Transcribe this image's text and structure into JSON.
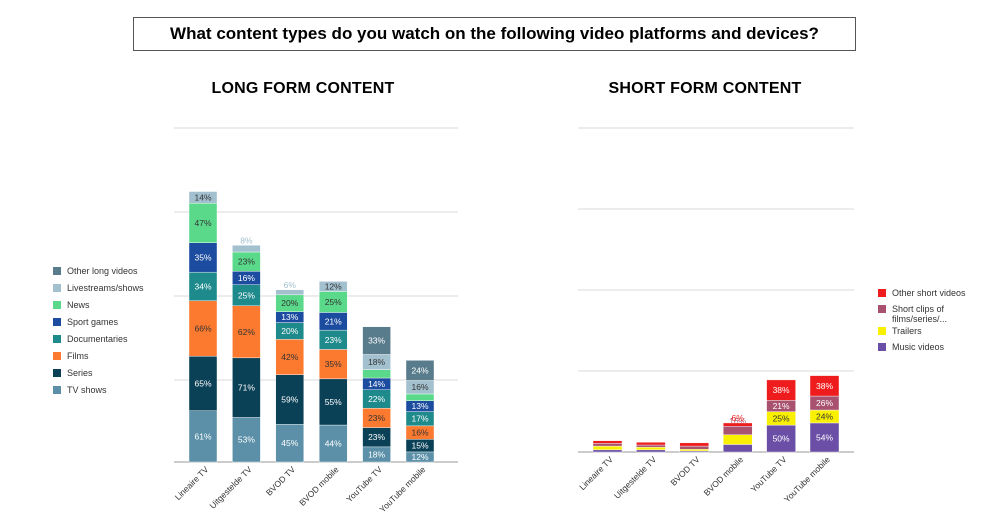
{
  "title": "What content types do you watch on the following video platforms and devices?",
  "chart_data": [
    {
      "type": "bar",
      "stacked": true,
      "title": "LONG FORM CONTENT",
      "categories": [
        "Lineaire TV",
        "Uitgestelde TV",
        "BVOD TV",
        "BVOD mobile",
        "YouTube TV",
        "YouTube mobile"
      ],
      "series": [
        {
          "name": "TV shows",
          "color": "#5b90a8",
          "values": [
            61,
            53,
            45,
            44,
            18,
            12
          ]
        },
        {
          "name": "Series",
          "color": "#0b4157",
          "values": [
            65,
            71,
            59,
            55,
            23,
            15
          ]
        },
        {
          "name": "Films",
          "color": "#fb7a30",
          "values": [
            66,
            62,
            42,
            35,
            23,
            16
          ]
        },
        {
          "name": "Documentaries",
          "color": "#1e8a8c",
          "values": [
            34,
            25,
            20,
            23,
            22,
            17
          ]
        },
        {
          "name": "Sport games",
          "color": "#1b4c9f",
          "values": [
            35,
            16,
            13,
            21,
            14,
            13
          ]
        },
        {
          "name": "News",
          "color": "#5ad98a",
          "values": [
            47,
            23,
            20,
            25,
            10,
            8
          ]
        },
        {
          "name": "Livestreams/shows",
          "color": "#a3c0cf",
          "values": [
            14,
            8,
            6,
            12,
            18,
            16
          ]
        },
        {
          "name": "Other long videos",
          "color": "#597c8c",
          "values": [
            0,
            0,
            0,
            0,
            33,
            24
          ]
        }
      ],
      "grid": true,
      "legend": "left"
    },
    {
      "type": "bar",
      "stacked": true,
      "title": "SHORT FORM CONTENT",
      "categories": [
        "Lineaire TV",
        "Uitgestelde TV",
        "BVOD TV",
        "BVOD mobile",
        "YouTube TV",
        "YouTube mobile"
      ],
      "series": [
        {
          "name": "Music videos",
          "color": "#6b4fa6",
          "values": [
            4,
            4,
            2,
            14,
            50,
            54
          ]
        },
        {
          "name": "Trailers",
          "color": "#f8f000",
          "values": [
            7,
            5,
            3,
            18,
            25,
            24
          ]
        },
        {
          "name": "Short clips of films/series/...",
          "color": "#a8526f",
          "values": [
            5,
            4,
            6,
            16,
            21,
            26
          ]
        },
        {
          "name": "Other short videos",
          "color": "#ee1c1c",
          "values": [
            5,
            5,
            6,
            6,
            38,
            38
          ]
        }
      ],
      "labels_shown_from": 3,
      "grid": true,
      "legend": "right"
    }
  ]
}
